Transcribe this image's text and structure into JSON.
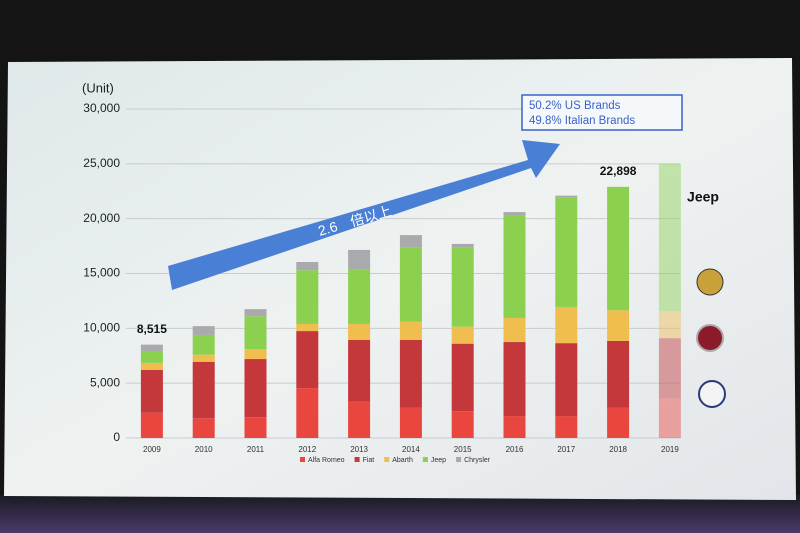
{
  "chart_data": {
    "type": "stacked_bar",
    "unit_label": "(Unit)",
    "categories": [
      "2009",
      "2010",
      "2011",
      "2012",
      "2013",
      "2014",
      "2015",
      "2016",
      "2017",
      "2018",
      "2019"
    ],
    "series": [
      {
        "name": "Alfa Romeo",
        "color": "#e8463f",
        "values": [
          2300,
          1800,
          1900,
          4550,
          3300,
          2750,
          2450,
          2000,
          2000,
          2750,
          3650
        ]
      },
      {
        "name": "Fiat",
        "color": "#c4373a",
        "values": [
          3900,
          5150,
          5300,
          5200,
          5650,
          6200,
          6150,
          6750,
          6650,
          6100,
          5450
        ]
      },
      {
        "name": "Abarth",
        "color": "#f0bd4f",
        "values": [
          650,
          650,
          900,
          650,
          1450,
          1650,
          1550,
          2200,
          3300,
          2800,
          2450
        ]
      },
      {
        "name": "Jeep",
        "color": "#8bd04f",
        "values": [
          1000,
          1800,
          3000,
          4900,
          5000,
          6750,
          7200,
          9300,
          9950,
          11250,
          13450
        ]
      },
      {
        "name": "Chrysler",
        "color": "#a9aaae",
        "values": [
          665,
          800,
          650,
          750,
          1750,
          1150,
          350,
          350,
          200,
          0,
          0
        ]
      }
    ],
    "faded_categories": [
      "2019"
    ],
    "total_labels": [
      {
        "category": "2009",
        "value": 8515,
        "label": "8,515"
      },
      {
        "category": "2018",
        "value": 22898,
        "label": "22,898"
      }
    ],
    "ylim": [
      0,
      30000
    ],
    "yticks": [
      {
        "value": 0,
        "label": "0"
      },
      {
        "value": 5000,
        "label": "5,000"
      },
      {
        "value": 10000,
        "label": "10,000"
      },
      {
        "value": 15000,
        "label": "15,000"
      },
      {
        "value": 20000,
        "label": "20,000"
      },
      {
        "value": 25000,
        "label": "25,000"
      },
      {
        "value": 30000,
        "label": "30,000"
      }
    ],
    "grid": true,
    "arrow_text": "2.6　倍以上",
    "callout": [
      "50.2% US Brands",
      "49.8% Italian Brands"
    ],
    "logo_text": "Jeep"
  }
}
